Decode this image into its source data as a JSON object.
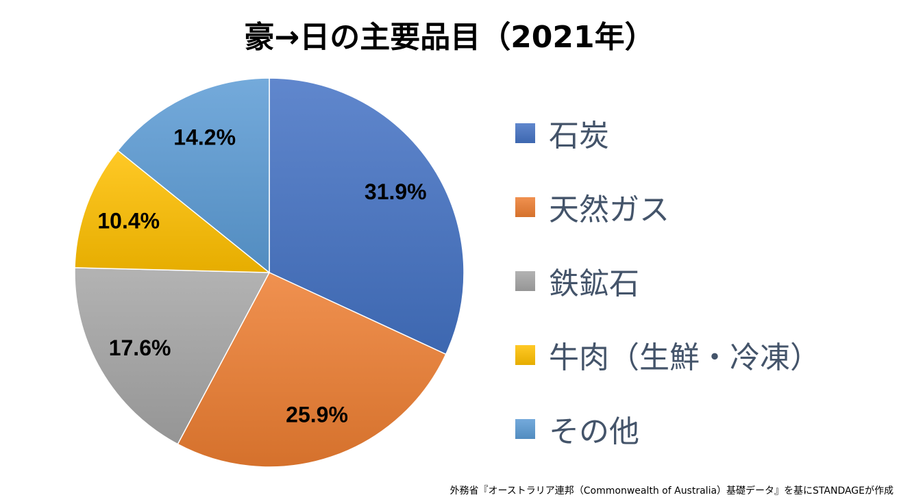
{
  "chart_data": {
    "type": "pie",
    "title": "豪→日の主要品目（2021年）",
    "categories": [
      "石炭",
      "天然ガス",
      "鉄鉱石",
      "牛肉（生鮮・冷凍）",
      "その他"
    ],
    "values": [
      31.9,
      25.9,
      17.6,
      10.4,
      14.2
    ],
    "data_labels": [
      "31.9%",
      "25.9%",
      "17.6%",
      "10.4%",
      "14.2%"
    ],
    "colors": [
      "#4472C4",
      "#ED7D31",
      "#A5A5A5",
      "#FFC000",
      "#5B9BD5"
    ],
    "legend_position": "right",
    "start_angle": "top, clockwise"
  },
  "source": "外務省『オーストラリア連邦（Commonwealth of Australia）基礎データ』を基にSTANDAGEが作成"
}
